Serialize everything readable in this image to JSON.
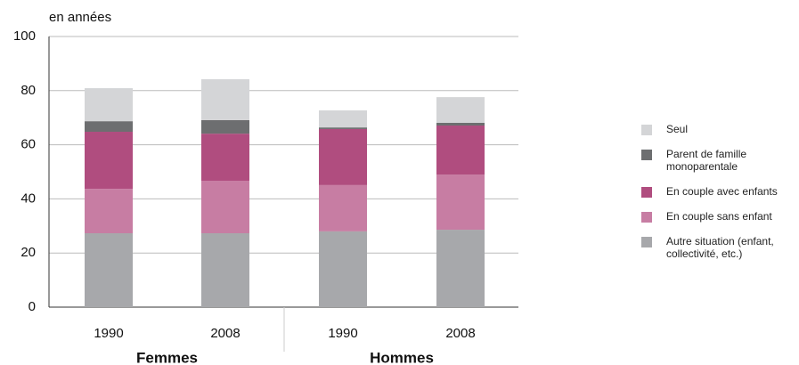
{
  "chart_data": {
    "type": "stacked_bar",
    "y_unit_label": "en années",
    "categories": [
      "1990",
      "2008",
      "1990",
      "2008"
    ],
    "groups": [
      {
        "label": "Femmes",
        "size": 2
      },
      {
        "label": "Hommes",
        "size": 2
      }
    ],
    "series": [
      {
        "name": "Autre situation (enfant, collectivité, etc.)",
        "color": "#a7a8ab",
        "values": [
          27.3,
          27.3,
          28.0,
          28.6
        ]
      },
      {
        "name": "En couple sans enfant",
        "color": "#c77da3",
        "values": [
          16.4,
          19.4,
          17.1,
          20.4
        ]
      },
      {
        "name": "En couple avec enfants",
        "color": "#b04d7f",
        "values": [
          21.1,
          17.4,
          20.7,
          18.1
        ]
      },
      {
        "name": "Parent de famille monoparentale",
        "color": "#6d6e70",
        "values": [
          3.9,
          5.0,
          0.6,
          1.0
        ]
      },
      {
        "name": "Seul",
        "color": "#d4d5d7",
        "values": [
          12.2,
          15.1,
          6.3,
          9.5
        ]
      }
    ],
    "ylim": [
      0,
      100
    ],
    "yticks": [
      0,
      20,
      40,
      60,
      80,
      100
    ],
    "grid": true
  }
}
